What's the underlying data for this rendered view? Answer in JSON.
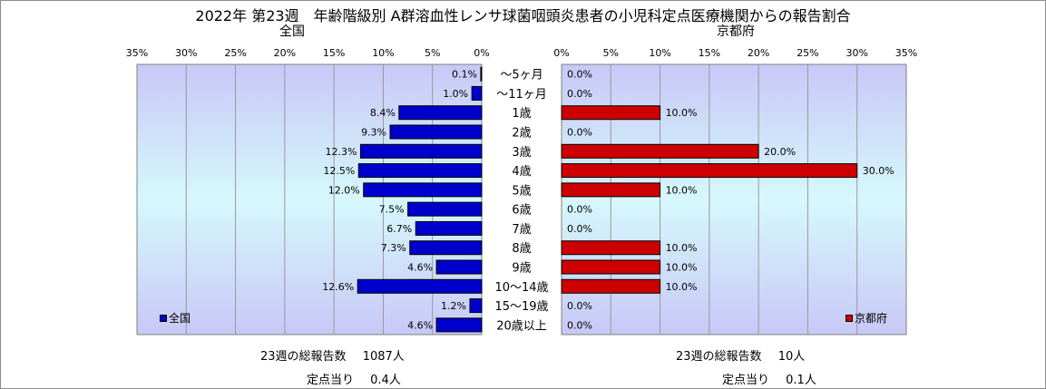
{
  "title": "2022年 第23週　年齢階級別 A群溶血性レンサ球菌咽頭炎患者の小児科定点医療機関からの報告割合",
  "colors": {
    "national": "#0000cc",
    "kyoto": "#cc0000",
    "grid": "#999999",
    "plot_top": "#c8c8f6",
    "plot_middle": "#d6f8fc",
    "plot_bottom": "#c8c8f6"
  },
  "chart_data": [
    {
      "type": "bar",
      "orientation": "horizontal",
      "direction": "right-to-left",
      "title": "全国",
      "legend": "全国",
      "legend_position": "bottom-left",
      "xlim": [
        0,
        35
      ],
      "ticks": [
        "35%",
        "30%",
        "25%",
        "20%",
        "15%",
        "10%",
        "5%",
        "0%"
      ],
      "grid": true,
      "categories": [
        "～5ヶ月",
        "～11ヶ月",
        "1歳",
        "2歳",
        "3歳",
        "4歳",
        "5歳",
        "6歳",
        "7歳",
        "8歳",
        "9歳",
        "10～14歳",
        "15～19歳",
        "20歳以上"
      ],
      "values": [
        0.1,
        1.0,
        8.4,
        9.3,
        12.3,
        12.5,
        12.0,
        7.5,
        6.7,
        7.3,
        4.6,
        12.6,
        1.2,
        4.6
      ],
      "labels": [
        "0.1%",
        "1.0%",
        "8.4%",
        "9.3%",
        "12.3%",
        "12.5%",
        "12.0%",
        "7.5%",
        "6.7%",
        "7.3%",
        "4.6%",
        "12.6%",
        "1.2%",
        "4.6%"
      ]
    },
    {
      "type": "bar",
      "orientation": "horizontal",
      "direction": "left-to-right",
      "title": "京都府",
      "legend": "京都府",
      "legend_position": "bottom-right",
      "xlim": [
        0,
        35
      ],
      "ticks": [
        "0%",
        "5%",
        "10%",
        "15%",
        "20%",
        "25%",
        "30%",
        "35%"
      ],
      "grid": true,
      "categories": [
        "～5ヶ月",
        "～11ヶ月",
        "1歳",
        "2歳",
        "3歳",
        "4歳",
        "5歳",
        "6歳",
        "7歳",
        "8歳",
        "9歳",
        "10～14歳",
        "15～19歳",
        "20歳以上"
      ],
      "values": [
        0.0,
        0.0,
        10.0,
        0.0,
        20.0,
        30.0,
        10.0,
        0.0,
        0.0,
        10.0,
        10.0,
        10.0,
        0.0,
        0.0
      ],
      "labels": [
        "0.0%",
        "0.0%",
        "10.0%",
        "0.0%",
        "20.0%",
        "30.0%",
        "10.0%",
        "0.0%",
        "0.0%",
        "10.0%",
        "10.0%",
        "10.0%",
        "0.0%",
        "0.0%"
      ]
    }
  ],
  "footer": {
    "national": {
      "total_label": "23週の総報告数",
      "total_value": "1087人",
      "per_site_label": "定点当り",
      "per_site_value": "0.4人"
    },
    "kyoto": {
      "total_label": "23週の総報告数",
      "total_value": "10人",
      "per_site_label": "定点当り",
      "per_site_value": "0.1人"
    }
  }
}
